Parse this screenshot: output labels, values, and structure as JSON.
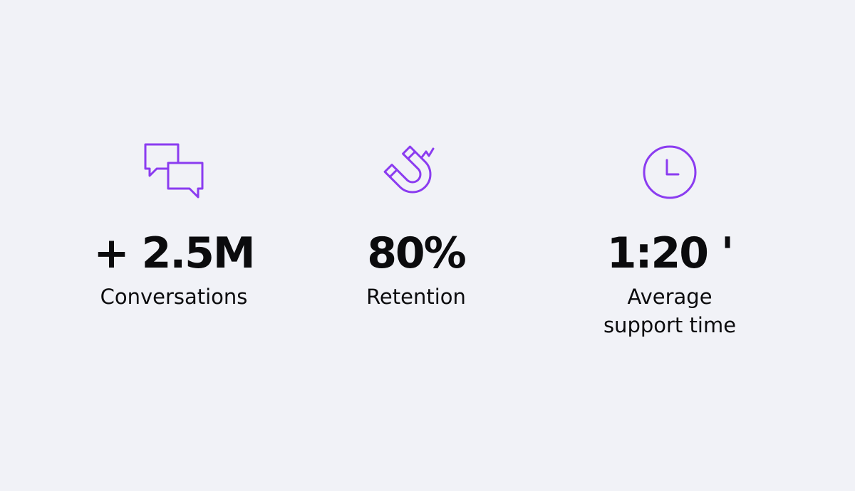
{
  "stats": [
    {
      "value": "+ 2.5M",
      "label": "Conversations"
    },
    {
      "value": "80%",
      "label": "Retention"
    },
    {
      "value": "1:20 '",
      "label": "Average support time"
    }
  ]
}
